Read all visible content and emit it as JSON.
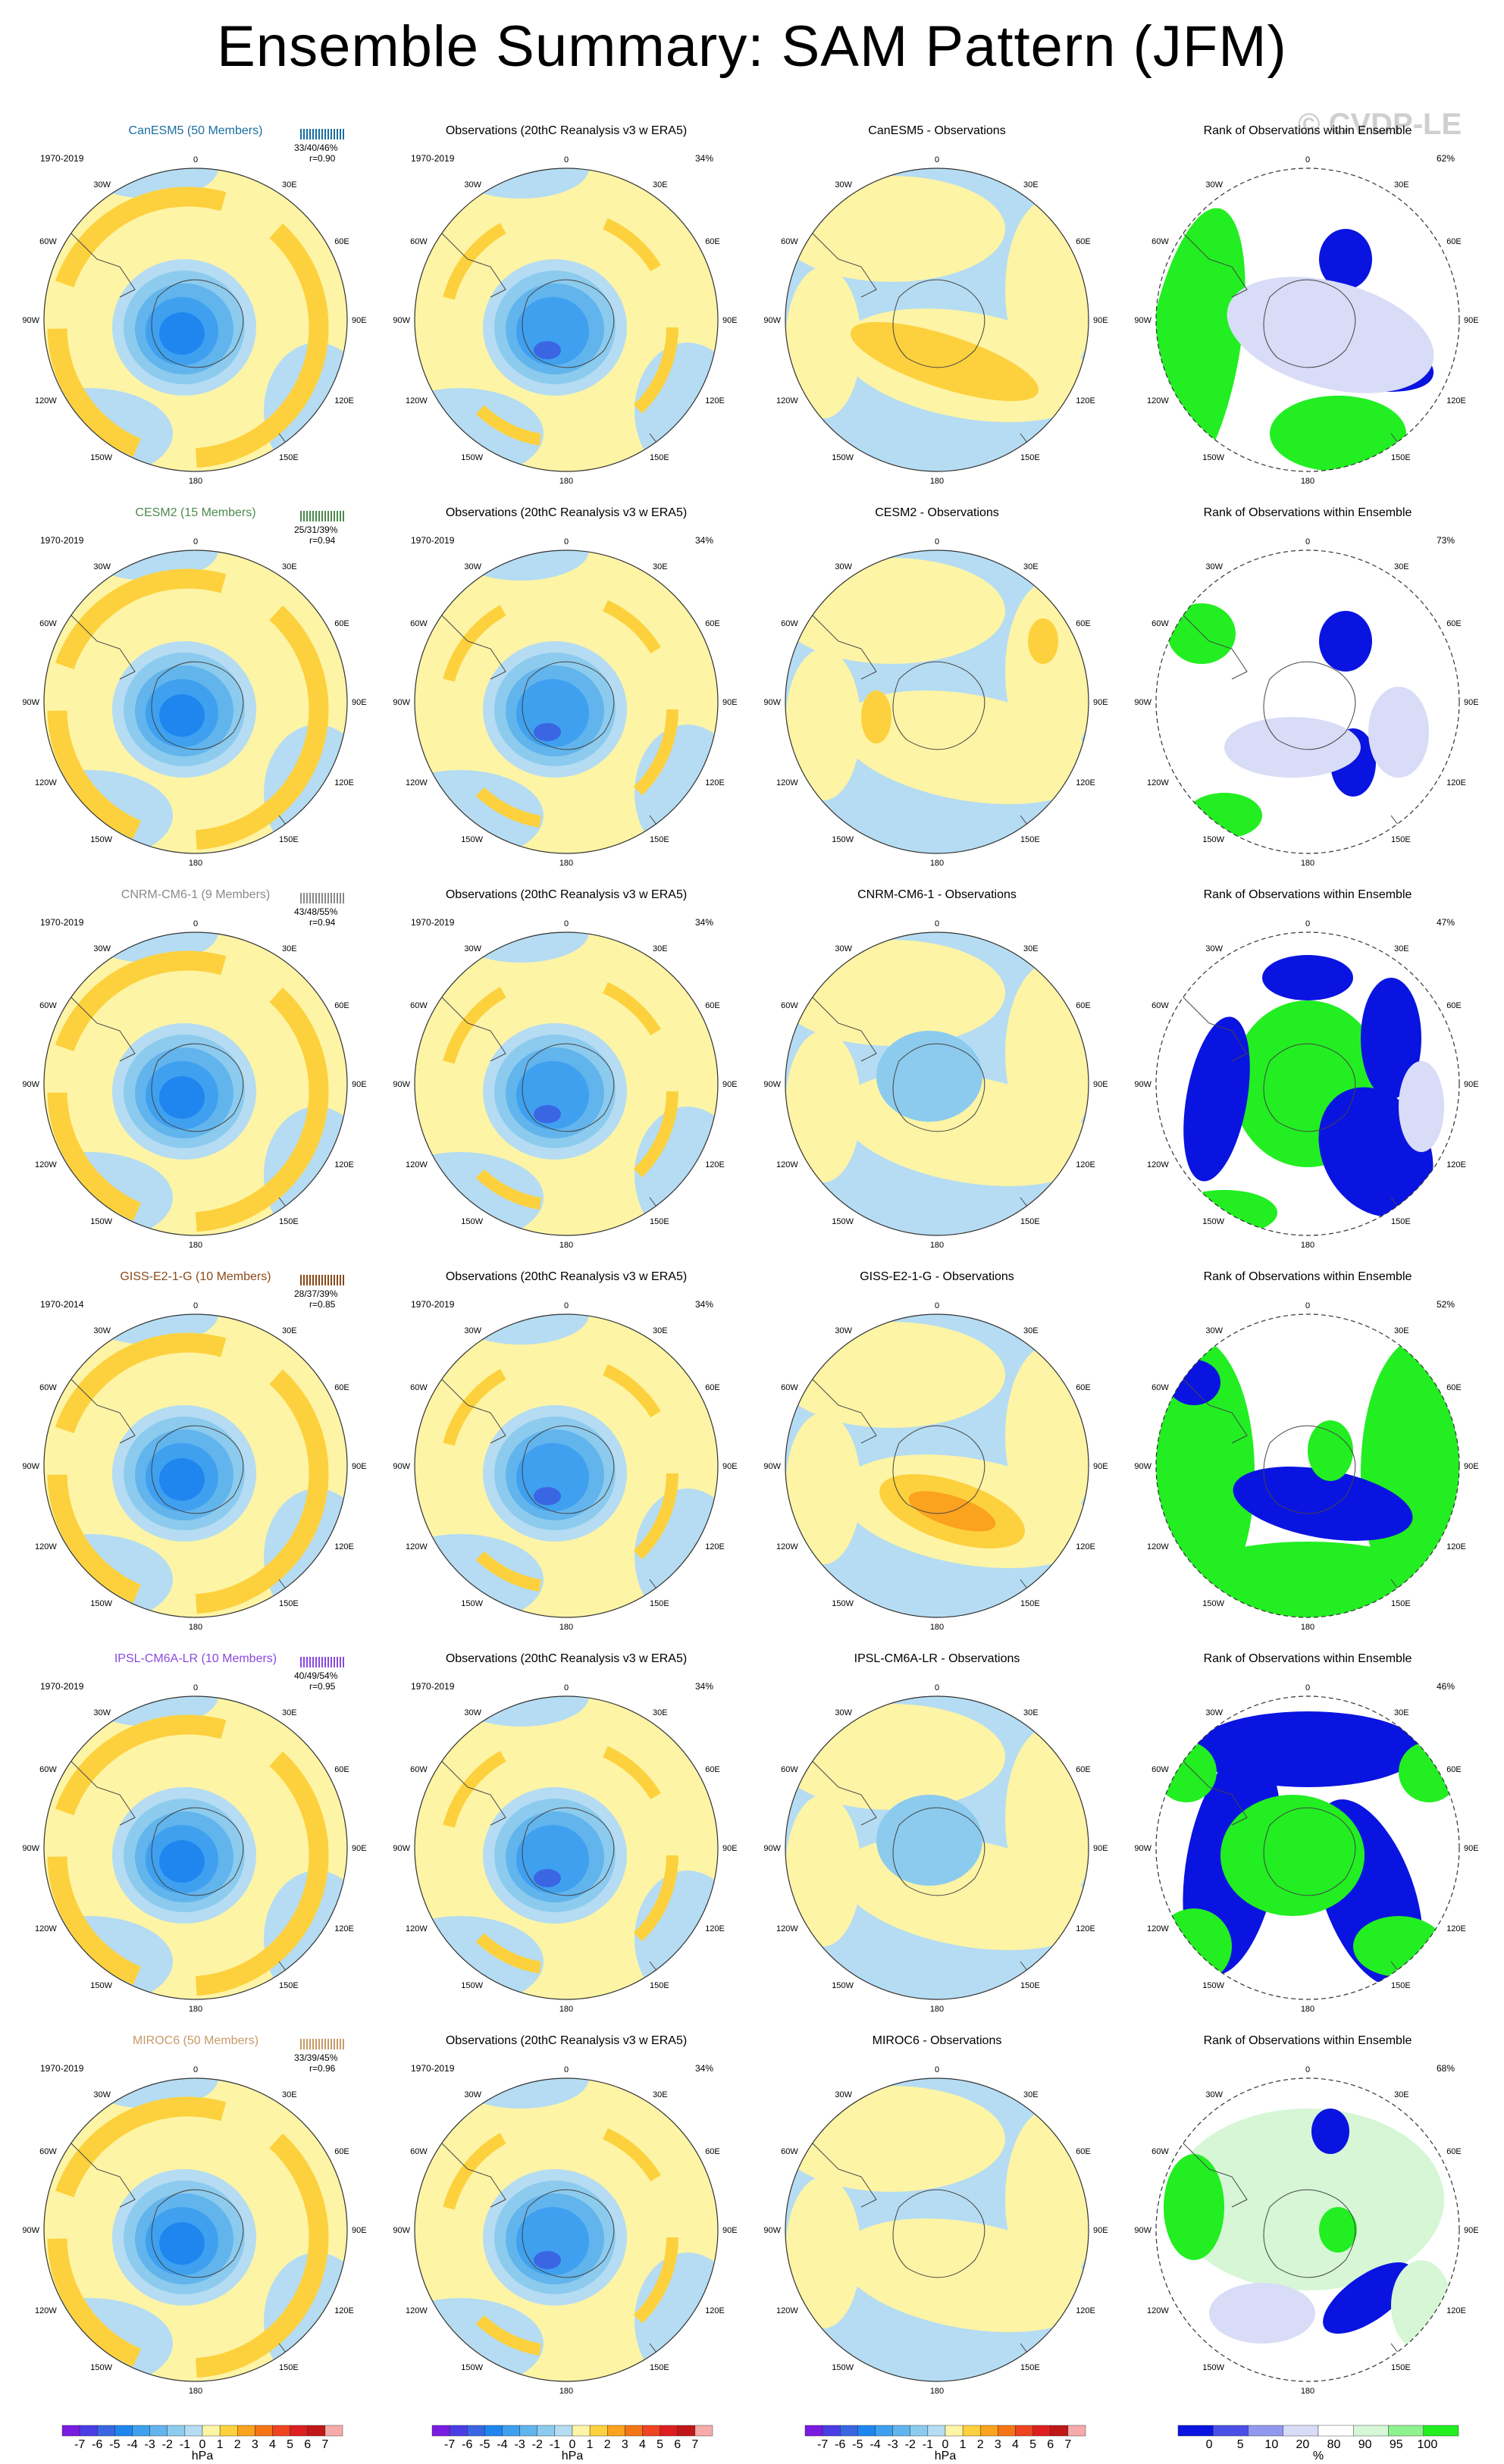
{
  "title": "Ensemble Summary: SAM Pattern (JFM)",
  "watermark": "© CVDP-LE",
  "colors": {
    "yellow": "#fdf4a6",
    "orange1": "#fdd13d",
    "orange2": "#fba21e",
    "orange3": "#f47515",
    "lightblue": "#b5dcf2",
    "blue1": "#8ccbee",
    "blue2": "#62b4ec",
    "blue3": "#3fa0f0",
    "blue4": "#1f86ef",
    "blue5": "#3a66e4",
    "rank_green": "#22ee22",
    "rank_lightgreen": "#d6f6d6",
    "rank_blue": "#0a14e0",
    "rank_lightblue": "#d8dcf6"
  },
  "lon_labels": {
    "top": "0",
    "tr1": "30E",
    "tr2": "60E",
    "right": "90E",
    "br2": "120E",
    "br1": "150E",
    "bottom": "180",
    "bl1": "150W",
    "bl2": "120W",
    "left": "90W",
    "tl2": "60W",
    "tl1": "30W"
  },
  "rows": [
    {
      "model": "CanESM5 (50 Members)",
      "model_color": "#1a6fa0",
      "period": "1970-2019",
      "stats": "33/40/46%",
      "r": "r=0.90",
      "obs_title": "Observations (20thC Reanalysis v3 w ERA5)",
      "obs_period": "1970-2019",
      "obs_pct": "34%",
      "diff_title": "CanESM5 - Observations",
      "rank_title": "Rank of Observations within Ensemble",
      "rank_pct": "62%"
    },
    {
      "model": "CESM2 (15 Members)",
      "model_color": "#4d8a4d",
      "period": "1970-2019",
      "stats": "25/31/39%",
      "r": "r=0.94",
      "obs_title": "Observations (20thC Reanalysis v3 w ERA5)",
      "obs_period": "1970-2019",
      "obs_pct": "34%",
      "diff_title": "CESM2 - Observations",
      "rank_title": "Rank of Observations within Ensemble",
      "rank_pct": "73%"
    },
    {
      "model": "CNRM-CM6-1 (9 Members)",
      "model_color": "#8a8a8a",
      "period": "1970-2019",
      "stats": "43/48/55%",
      "r": "r=0.94",
      "obs_title": "Observations (20thC Reanalysis v3 w ERA5)",
      "obs_period": "1970-2019",
      "obs_pct": "34%",
      "diff_title": "CNRM-CM6-1 - Observations",
      "rank_title": "Rank of Observations within Ensemble",
      "rank_pct": "47%"
    },
    {
      "model": "GISS-E2-1-G (10 Members)",
      "model_color": "#8a4a1a",
      "period": "1970-2014",
      "stats": "28/37/39%",
      "r": "r=0.85",
      "obs_title": "Observations (20thC Reanalysis v3 w ERA5)",
      "obs_period": "1970-2019",
      "obs_pct": "34%",
      "diff_title": "GISS-E2-1-G - Observations",
      "rank_title": "Rank of Observations within Ensemble",
      "rank_pct": "52%"
    },
    {
      "model": "IPSL-CM6A-LR (10 Members)",
      "model_color": "#8a4ae0",
      "period": "1970-2019",
      "stats": "40/49/54%",
      "r": "r=0.95",
      "obs_title": "Observations (20thC Reanalysis v3 w ERA5)",
      "obs_period": "1970-2019",
      "obs_pct": "34%",
      "diff_title": "IPSL-CM6A-LR - Observations",
      "rank_title": "Rank of Observations within Ensemble",
      "rank_pct": "46%"
    },
    {
      "model": "MIROC6 (50 Members)",
      "model_color": "#c89a6a",
      "period": "1970-2019",
      "stats": "33/39/45%",
      "r": "r=0.96",
      "obs_title": "Observations (20thC Reanalysis v3 w ERA5)",
      "obs_period": "1970-2019",
      "obs_pct": "34%",
      "diff_title": "MIROC6 - Observations",
      "rank_title": "Rank of Observations within Ensemble",
      "rank_pct": "68%"
    }
  ],
  "legend_hpa": {
    "labels": [
      "-7",
      "-6",
      "-5",
      "-4",
      "-3",
      "-2",
      "-1",
      "0",
      "1",
      "2",
      "3",
      "4",
      "5",
      "6",
      "7"
    ],
    "unit": "hPa",
    "colors": [
      "#7a1be0",
      "#4b3de6",
      "#3a66e4",
      "#1f86ef",
      "#3fa0f0",
      "#62b4ec",
      "#8ccbee",
      "#b5dcf2",
      "#fdf4a6",
      "#fdd13d",
      "#fba21e",
      "#f47515",
      "#ee4420",
      "#dd1f20",
      "#c01818",
      "#f6aaaa"
    ]
  },
  "legend_rank": {
    "labels": [
      "0",
      "5",
      "10",
      "20",
      "80",
      "90",
      "95",
      "100"
    ],
    "unit": "%",
    "colors": [
      "#0a14e0",
      "#4a50e6",
      "#9298ee",
      "#d8dcf6",
      "#ffffff",
      "#d6f6d6",
      "#8ef28e",
      "#22ee22"
    ]
  }
}
